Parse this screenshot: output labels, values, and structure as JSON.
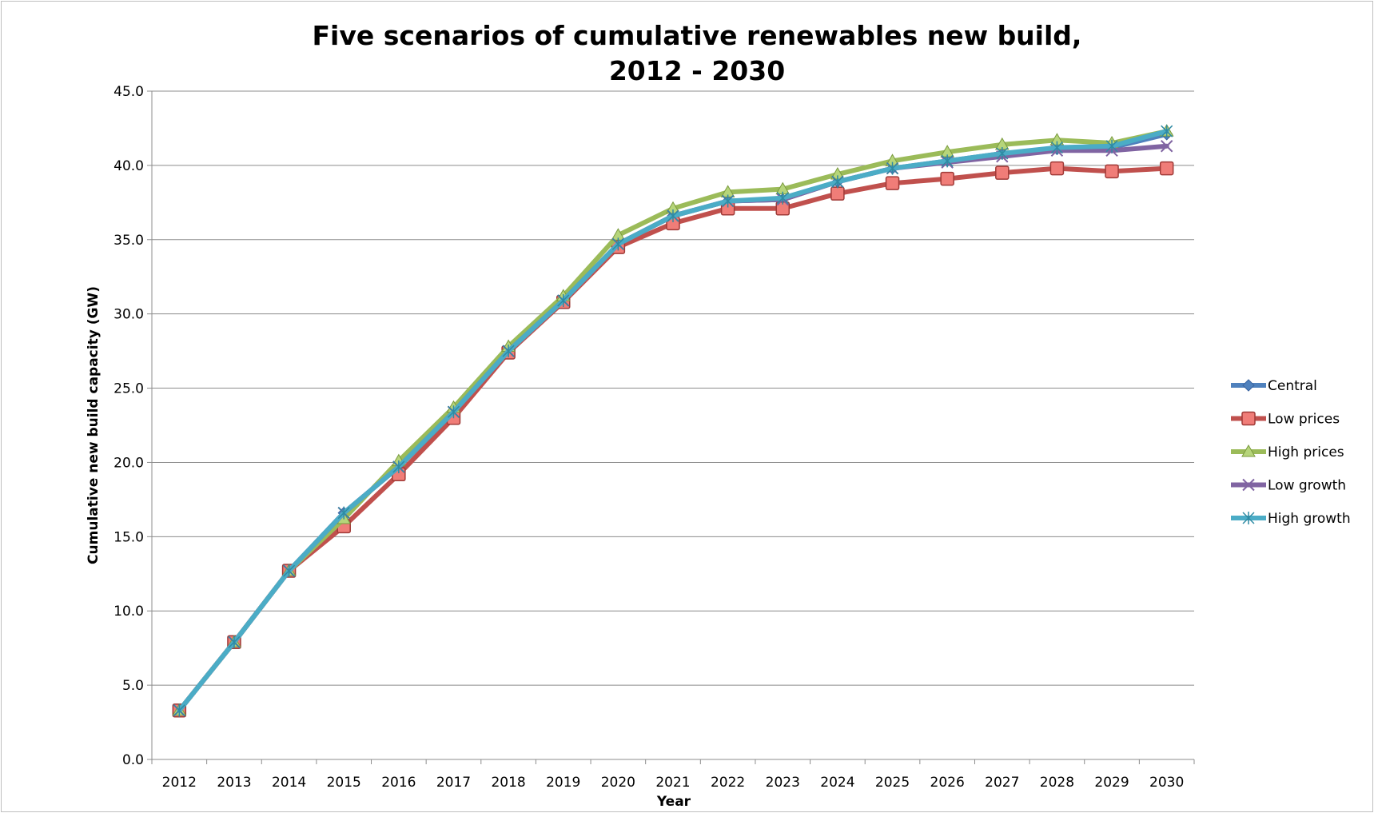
{
  "chart_data": {
    "type": "line",
    "title_line1": "Five scenarios of cumulative renewables new build,",
    "title_line2": "2012 - 2030",
    "xlabel": "Year",
    "ylabel": "Cumulative new build capacity (GW)",
    "ylim": [
      0,
      45
    ],
    "y_ticks": [
      "0.0",
      "5.0",
      "10.0",
      "15.0",
      "20.0",
      "25.0",
      "30.0",
      "35.0",
      "40.0",
      "45.0"
    ],
    "grid": true,
    "legend_position": "right",
    "categories": [
      "2012",
      "2013",
      "2014",
      "2015",
      "2016",
      "2017",
      "2018",
      "2019",
      "2020",
      "2021",
      "2022",
      "2023",
      "2024",
      "2025",
      "2026",
      "2027",
      "2028",
      "2029",
      "2030"
    ],
    "series": [
      {
        "name": "Central",
        "color": "#4f81bd",
        "marker": "diamond",
        "values": [
          3.3,
          7.9,
          12.7,
          16.6,
          19.7,
          23.4,
          27.5,
          30.9,
          34.7,
          36.6,
          37.6,
          37.7,
          38.9,
          39.8,
          40.3,
          40.8,
          41.1,
          41.2,
          42.1
        ]
      },
      {
        "name": "Low prices",
        "color": "#c0504d",
        "marker": "square",
        "values": [
          3.3,
          7.9,
          12.7,
          15.7,
          19.2,
          23.0,
          27.4,
          30.8,
          34.5,
          36.1,
          37.1,
          37.1,
          38.1,
          38.8,
          39.1,
          39.5,
          39.8,
          39.6,
          39.8
        ]
      },
      {
        "name": "High prices",
        "color": "#9bbb59",
        "marker": "triangle",
        "values": [
          3.3,
          7.9,
          12.7,
          16.2,
          20.1,
          23.7,
          27.8,
          31.2,
          35.3,
          37.1,
          38.2,
          38.4,
          39.4,
          40.3,
          40.9,
          41.4,
          41.7,
          41.5,
          42.3
        ]
      },
      {
        "name": "Low growth",
        "color": "#8064a2",
        "marker": "x",
        "values": [
          3.3,
          7.9,
          12.7,
          16.6,
          19.7,
          23.4,
          27.5,
          30.9,
          34.7,
          36.6,
          37.6,
          37.7,
          38.9,
          39.8,
          40.2,
          40.6,
          41.0,
          41.0,
          41.3
        ]
      },
      {
        "name": "High growth",
        "color": "#4bacc6",
        "marker": "star",
        "values": [
          3.3,
          7.9,
          12.7,
          16.6,
          19.7,
          23.4,
          27.5,
          30.9,
          34.7,
          36.6,
          37.6,
          37.8,
          38.9,
          39.8,
          40.3,
          40.8,
          41.2,
          41.3,
          42.3
        ]
      }
    ]
  }
}
